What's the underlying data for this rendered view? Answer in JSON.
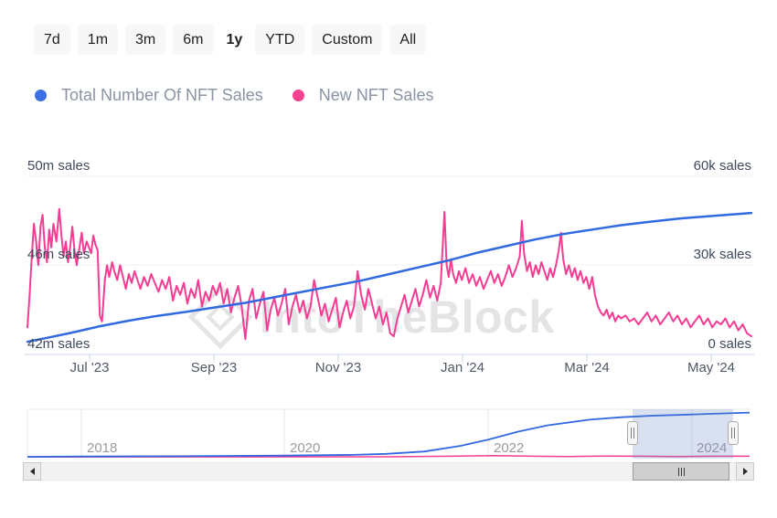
{
  "range_selector": {
    "buttons": [
      {
        "label": "7d",
        "selected": false
      },
      {
        "label": "1m",
        "selected": false
      },
      {
        "label": "3m",
        "selected": false
      },
      {
        "label": "6m",
        "selected": false
      },
      {
        "label": "1y",
        "selected": true
      },
      {
        "label": "YTD",
        "selected": false
      },
      {
        "label": "Custom",
        "selected": false
      },
      {
        "label": "All",
        "selected": false
      }
    ]
  },
  "legend": {
    "items": [
      {
        "label": "Total Number Of NFT Sales",
        "color": "#3B6FE3"
      },
      {
        "label": "New NFT Sales",
        "color": "#F5418F"
      }
    ]
  },
  "watermark": {
    "text": "IntoTheBlock"
  },
  "chart_data": {
    "type": "line",
    "title": "",
    "left_axis": {
      "labels": [
        "50m sales",
        "46m sales",
        "42m sales"
      ],
      "min": 42,
      "max": 50,
      "unit": "m sales"
    },
    "right_axis": {
      "labels": [
        "60k sales",
        "30k sales",
        "0 sales"
      ],
      "min": 0,
      "max": 60,
      "unit": "k sales"
    },
    "x_ticks": [
      "Jul '23",
      "Sep '23",
      "Nov '23",
      "Jan '24",
      "Mar '24",
      "May '24"
    ],
    "x_range": [
      "Jun 2023",
      "Jun 2024"
    ],
    "grid": "horizontal-only",
    "legend_position": "top-left",
    "series": [
      {
        "name": "Total Number Of NFT Sales",
        "color": "#3069E0",
        "axis": "left",
        "unit": "m",
        "points": [
          [
            0,
            42.55
          ],
          [
            0.03,
            42.75
          ],
          [
            0.06,
            42.95
          ],
          [
            0.1,
            43.25
          ],
          [
            0.14,
            43.5
          ],
          [
            0.18,
            43.72
          ],
          [
            0.22,
            43.9
          ],
          [
            0.26,
            44.1
          ],
          [
            0.3,
            44.3
          ],
          [
            0.34,
            44.55
          ],
          [
            0.38,
            44.8
          ],
          [
            0.42,
            45.05
          ],
          [
            0.46,
            45.3
          ],
          [
            0.5,
            45.6
          ],
          [
            0.54,
            45.9
          ],
          [
            0.58,
            46.2
          ],
          [
            0.62,
            46.55
          ],
          [
            0.66,
            46.85
          ],
          [
            0.7,
            47.15
          ],
          [
            0.74,
            47.4
          ],
          [
            0.78,
            47.6
          ],
          [
            0.82,
            47.8
          ],
          [
            0.86,
            47.95
          ],
          [
            0.9,
            48.1
          ],
          [
            0.94,
            48.2
          ],
          [
            1,
            48.35
          ]
        ]
      },
      {
        "name": "New NFT Sales",
        "color": "#F43C92",
        "axis": "right",
        "unit": "k",
        "points": [
          [
            0,
            9
          ],
          [
            0.003,
            20
          ],
          [
            0.006,
            33
          ],
          [
            0.009,
            44
          ],
          [
            0.012,
            38
          ],
          [
            0.015,
            30
          ],
          [
            0.018,
            43
          ],
          [
            0.021,
            47
          ],
          [
            0.024,
            36
          ],
          [
            0.027,
            31
          ],
          [
            0.03,
            42
          ],
          [
            0.033,
            36
          ],
          [
            0.036,
            44
          ],
          [
            0.04,
            38
          ],
          [
            0.044,
            49
          ],
          [
            0.047,
            40
          ],
          [
            0.05,
            33
          ],
          [
            0.053,
            38
          ],
          [
            0.056,
            31
          ],
          [
            0.059,
            36
          ],
          [
            0.062,
            43
          ],
          [
            0.065,
            35
          ],
          [
            0.068,
            30
          ],
          [
            0.072,
            36
          ],
          [
            0.075,
            41
          ],
          [
            0.078,
            34
          ],
          [
            0.082,
            38
          ],
          [
            0.085,
            36
          ],
          [
            0.088,
            34
          ],
          [
            0.091,
            40
          ],
          [
            0.094,
            37
          ],
          [
            0.097,
            35
          ],
          [
            0.1,
            13
          ],
          [
            0.103,
            11
          ],
          [
            0.107,
            25
          ],
          [
            0.11,
            30
          ],
          [
            0.113,
            26
          ],
          [
            0.117,
            31
          ],
          [
            0.12,
            28
          ],
          [
            0.124,
            25
          ],
          [
            0.128,
            30
          ],
          [
            0.132,
            26
          ],
          [
            0.136,
            22
          ],
          [
            0.14,
            27
          ],
          [
            0.144,
            24
          ],
          [
            0.148,
            28
          ],
          [
            0.152,
            25
          ],
          [
            0.156,
            22
          ],
          [
            0.161,
            26
          ],
          [
            0.166,
            23
          ],
          [
            0.171,
            27
          ],
          [
            0.176,
            24
          ],
          [
            0.181,
            21
          ],
          [
            0.186,
            25
          ],
          [
            0.191,
            22
          ],
          [
            0.196,
            26
          ],
          [
            0.201,
            18
          ],
          [
            0.206,
            23
          ],
          [
            0.211,
            20
          ],
          [
            0.216,
            24
          ],
          [
            0.221,
            17
          ],
          [
            0.226,
            22
          ],
          [
            0.231,
            19
          ],
          [
            0.236,
            25
          ],
          [
            0.241,
            16
          ],
          [
            0.246,
            21
          ],
          [
            0.251,
            18
          ],
          [
            0.256,
            23
          ],
          [
            0.261,
            20
          ],
          [
            0.266,
            24
          ],
          [
            0.271,
            17
          ],
          [
            0.276,
            22
          ],
          [
            0.281,
            14
          ],
          [
            0.286,
            19
          ],
          [
            0.291,
            23
          ],
          [
            0.296,
            16
          ],
          [
            0.301,
            5
          ],
          [
            0.306,
            18
          ],
          [
            0.311,
            22
          ],
          [
            0.316,
            12
          ],
          [
            0.321,
            17
          ],
          [
            0.326,
            21
          ],
          [
            0.331,
            8
          ],
          [
            0.336,
            15
          ],
          [
            0.341,
            19
          ],
          [
            0.346,
            13
          ],
          [
            0.351,
            17
          ],
          [
            0.356,
            22
          ],
          [
            0.361,
            10
          ],
          [
            0.366,
            16
          ],
          [
            0.371,
            20
          ],
          [
            0.376,
            14
          ],
          [
            0.381,
            18
          ],
          [
            0.386,
            12
          ],
          [
            0.391,
            16
          ],
          [
            0.396,
            25
          ],
          [
            0.401,
            19
          ],
          [
            0.406,
            13
          ],
          [
            0.411,
            17
          ],
          [
            0.416,
            11
          ],
          [
            0.421,
            15
          ],
          [
            0.426,
            19
          ],
          [
            0.431,
            9
          ],
          [
            0.436,
            14
          ],
          [
            0.441,
            18
          ],
          [
            0.446,
            12
          ],
          [
            0.451,
            16
          ],
          [
            0.456,
            28
          ],
          [
            0.461,
            20
          ],
          [
            0.466,
            15
          ],
          [
            0.471,
            22
          ],
          [
            0.476,
            17
          ],
          [
            0.481,
            12
          ],
          [
            0.486,
            16
          ],
          [
            0.491,
            10
          ],
          [
            0.496,
            14
          ],
          [
            0.501,
            7
          ],
          [
            0.506,
            6
          ],
          [
            0.511,
            12
          ],
          [
            0.516,
            16
          ],
          [
            0.521,
            20
          ],
          [
            0.526,
            14
          ],
          [
            0.531,
            18
          ],
          [
            0.536,
            22
          ],
          [
            0.541,
            16
          ],
          [
            0.546,
            20
          ],
          [
            0.551,
            25
          ],
          [
            0.556,
            19
          ],
          [
            0.561,
            23
          ],
          [
            0.566,
            18
          ],
          [
            0.571,
            24
          ],
          [
            0.576,
            48
          ],
          [
            0.579,
            30
          ],
          [
            0.582,
            26
          ],
          [
            0.585,
            32
          ],
          [
            0.588,
            27
          ],
          [
            0.592,
            24
          ],
          [
            0.596,
            28
          ],
          [
            0.6,
            25
          ],
          [
            0.605,
            29
          ],
          [
            0.61,
            24
          ],
          [
            0.615,
            27
          ],
          [
            0.62,
            23
          ],
          [
            0.625,
            26
          ],
          [
            0.63,
            22
          ],
          [
            0.635,
            25
          ],
          [
            0.64,
            28
          ],
          [
            0.645,
            24
          ],
          [
            0.65,
            27
          ],
          [
            0.655,
            23
          ],
          [
            0.66,
            26
          ],
          [
            0.665,
            30
          ],
          [
            0.67,
            26
          ],
          [
            0.675,
            29
          ],
          [
            0.68,
            33
          ],
          [
            0.683,
            45
          ],
          [
            0.686,
            34
          ],
          [
            0.69,
            28
          ],
          [
            0.694,
            31
          ],
          [
            0.698,
            26
          ],
          [
            0.702,
            30
          ],
          [
            0.706,
            27
          ],
          [
            0.71,
            31
          ],
          [
            0.714,
            28
          ],
          [
            0.718,
            25
          ],
          [
            0.722,
            29
          ],
          [
            0.726,
            26
          ],
          [
            0.73,
            30
          ],
          [
            0.734,
            35
          ],
          [
            0.737,
            41
          ],
          [
            0.74,
            32
          ],
          [
            0.744,
            27
          ],
          [
            0.748,
            30
          ],
          [
            0.752,
            26
          ],
          [
            0.756,
            29
          ],
          [
            0.76,
            25
          ],
          [
            0.764,
            28
          ],
          [
            0.768,
            24
          ],
          [
            0.772,
            26
          ],
          [
            0.776,
            22
          ],
          [
            0.78,
            26
          ],
          [
            0.784,
            20
          ],
          [
            0.788,
            16
          ],
          [
            0.792,
            14
          ],
          [
            0.796,
            13
          ],
          [
            0.8,
            15
          ],
          [
            0.804,
            12
          ],
          [
            0.808,
            14
          ],
          [
            0.812,
            11
          ],
          [
            0.816,
            13
          ],
          [
            0.82,
            12
          ],
          [
            0.826,
            13
          ],
          [
            0.832,
            11
          ],
          [
            0.838,
            12
          ],
          [
            0.844,
            10
          ],
          [
            0.85,
            12
          ],
          [
            0.856,
            14
          ],
          [
            0.862,
            11
          ],
          [
            0.868,
            13
          ],
          [
            0.874,
            10
          ],
          [
            0.88,
            12
          ],
          [
            0.886,
            14
          ],
          [
            0.892,
            11
          ],
          [
            0.898,
            13
          ],
          [
            0.904,
            10
          ],
          [
            0.91,
            12
          ],
          [
            0.916,
            9
          ],
          [
            0.922,
            11
          ],
          [
            0.928,
            13
          ],
          [
            0.934,
            10
          ],
          [
            0.94,
            12
          ],
          [
            0.946,
            9
          ],
          [
            0.952,
            11
          ],
          [
            0.958,
            10
          ],
          [
            0.964,
            12
          ],
          [
            0.97,
            9
          ],
          [
            0.976,
            11
          ],
          [
            0.982,
            8
          ],
          [
            0.988,
            10
          ],
          [
            0.994,
            7
          ],
          [
            1,
            6
          ]
        ]
      }
    ],
    "navigator": {
      "year_labels": [
        "2018",
        "2020",
        "2022",
        "2024"
      ],
      "selected_window": "late 2023 to mid 2024",
      "series": [
        {
          "name": "Total Number Of NFT Sales",
          "color": "#3069E0",
          "points": [
            [
              0,
              0.02
            ],
            [
              0.075,
              0.025
            ],
            [
              0.2,
              0.03
            ],
            [
              0.356,
              0.045
            ],
            [
              0.45,
              0.06
            ],
            [
              0.497,
              0.08
            ],
            [
              0.55,
              0.13
            ],
            [
              0.6,
              0.25
            ],
            [
              0.638,
              0.38
            ],
            [
              0.68,
              0.55
            ],
            [
              0.72,
              0.68
            ],
            [
              0.778,
              0.8
            ],
            [
              0.82,
              0.85
            ],
            [
              0.86,
              0.88
            ],
            [
              0.92,
              0.91
            ],
            [
              0.96,
              0.93
            ],
            [
              1,
              0.95
            ]
          ]
        },
        {
          "name": "New NFT Sales",
          "color": "#F43C92",
          "points": [
            [
              0,
              0.015
            ],
            [
              0.3,
              0.018
            ],
            [
              0.5,
              0.02
            ],
            [
              0.6,
              0.035
            ],
            [
              0.65,
              0.045
            ],
            [
              0.7,
              0.03
            ],
            [
              0.75,
              0.025
            ],
            [
              0.8,
              0.035
            ],
            [
              0.85,
              0.03
            ],
            [
              0.9,
              0.025
            ],
            [
              0.95,
              0.03
            ],
            [
              1,
              0.03
            ]
          ]
        }
      ]
    }
  }
}
